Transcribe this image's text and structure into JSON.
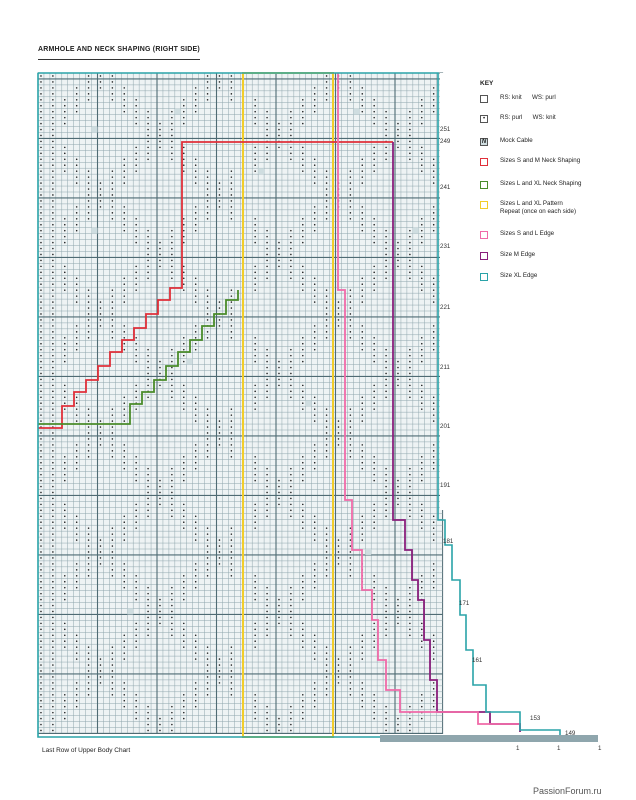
{
  "title": "ARMHOLE AND NECK SHAPING (RIGHT SIDE)",
  "key": {
    "heading": "KEY",
    "items": [
      {
        "id": "knit",
        "symbol": "",
        "text": "RS: knit      WS: purl",
        "color": "#555555"
      },
      {
        "id": "purl",
        "symbol": "•",
        "text": "RS: purl      WS: knit",
        "color": "#555555"
      },
      {
        "id": "cable",
        "symbol": "N",
        "text": "Mock Cable",
        "color": "#555555"
      },
      {
        "id": "sm-neck",
        "symbol": "",
        "text": "Sizes S and M Neck Shaping",
        "color": "#e0303a"
      },
      {
        "id": "lxl-neck",
        "symbol": "",
        "text": "Sizes L and XL Neck Shaping",
        "color": "#4a8c2a"
      },
      {
        "id": "lxl-repeat",
        "symbol": "",
        "text": "Sizes L and XL Pattern\nRepeat (once on each side)",
        "color": "#f2cd2a"
      },
      {
        "id": "sl-edge",
        "symbol": "",
        "text": "Sizes S and L Edge",
        "color": "#f06aa8"
      },
      {
        "id": "m-edge",
        "symbol": "",
        "text": "Size M Edge",
        "color": "#8a1f7c"
      },
      {
        "id": "xl-edge",
        "symbol": "",
        "text": "Size XL Edge",
        "color": "#2aa3a8"
      }
    ]
  },
  "row_labels": [
    "251",
    "249",
    "241",
    "231",
    "221",
    "211",
    "201",
    "191",
    "181",
    "171",
    "161",
    "153",
    "149"
  ],
  "bottom_labels": [
    "1",
    "1",
    "1"
  ],
  "footer": "Last Row of Upper Body Chart",
  "watermark": "PassionForum.ru",
  "colors": {
    "grid": "#8fa6ad",
    "grid_major": "#4f6b73",
    "cell_fill": "#eef3f4",
    "red": "#e0303a",
    "green": "#4a8c2a",
    "yellow": "#f2cd2a",
    "pink": "#f06aa8",
    "purple": "#8a1f7c",
    "teal": "#2aa3a8"
  }
}
